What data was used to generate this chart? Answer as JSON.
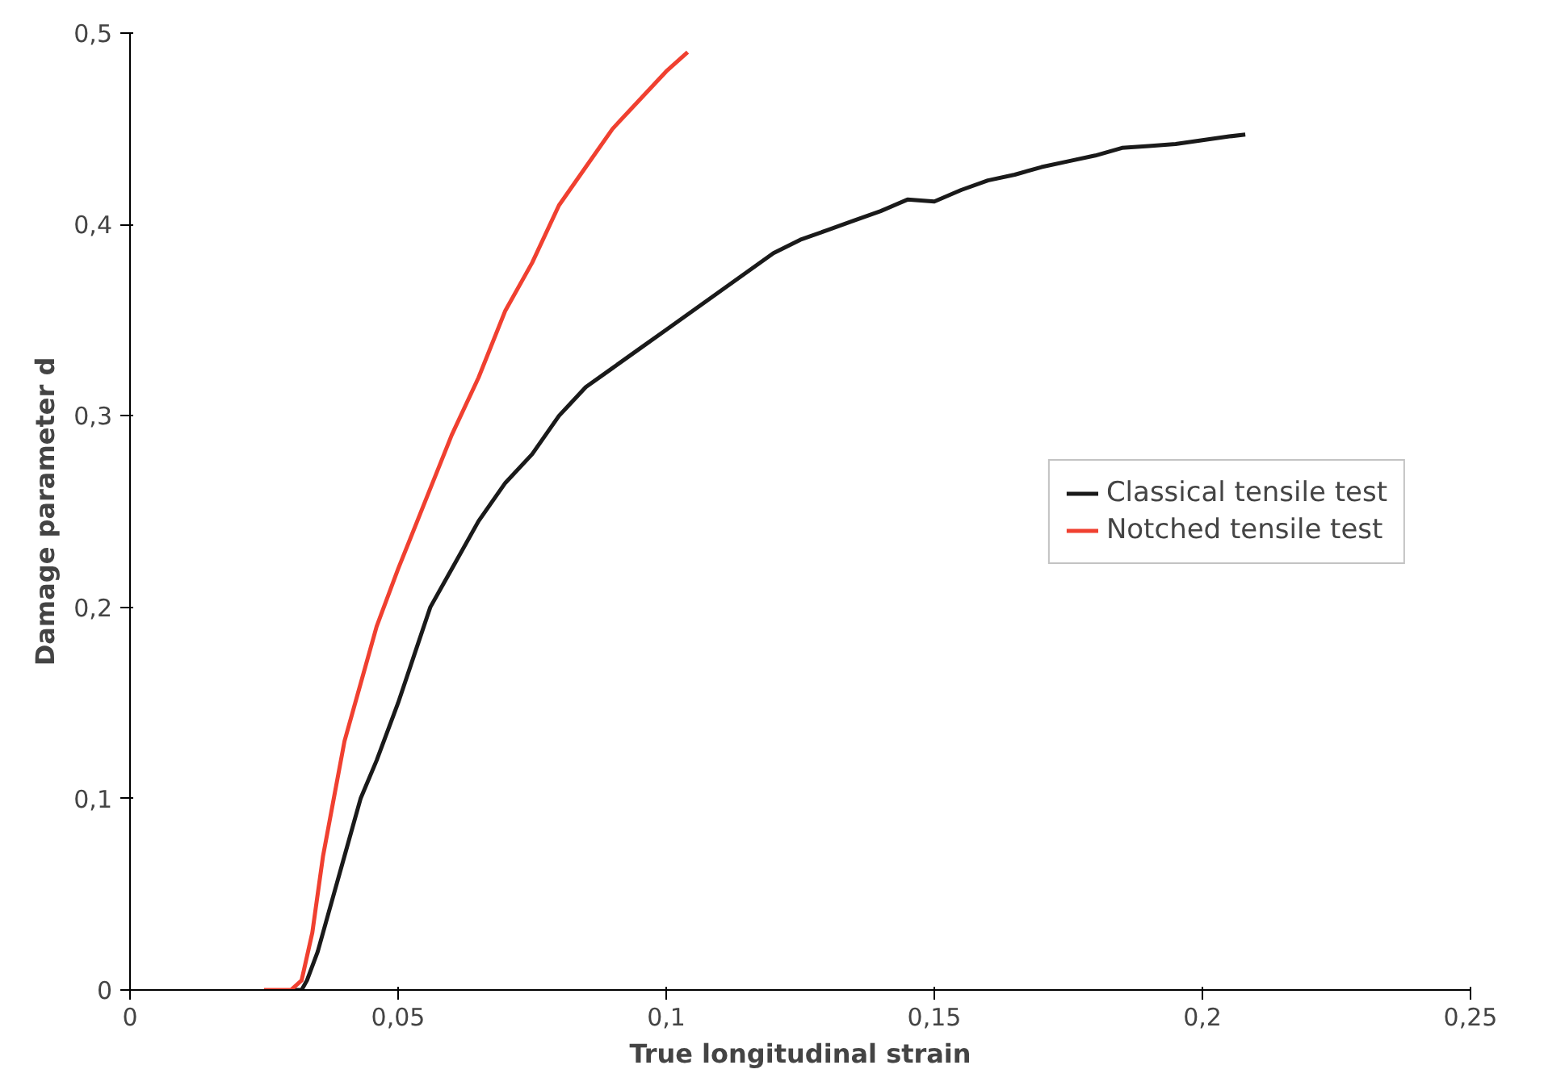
{
  "chart_data": {
    "type": "line",
    "xlabel": "True longitudinal strain",
    "ylabel": "Damage parameter d",
    "xlim": [
      0,
      0.25
    ],
    "ylim": [
      0,
      0.5
    ],
    "xticks": [
      0,
      {
        "value": 0.05,
        "label": "0,05"
      },
      {
        "value": 0.1,
        "label": "0,1"
      },
      {
        "value": 0.15,
        "label": "0,15"
      },
      {
        "value": 0.2,
        "label": "0,2"
      },
      {
        "value": 0.25,
        "label": "0,25"
      }
    ],
    "yticks": [
      0,
      {
        "value": 0.1,
        "label": "0,1"
      },
      {
        "value": 0.2,
        "label": "0,2"
      },
      {
        "value": 0.3,
        "label": "0,3"
      },
      {
        "value": 0.4,
        "label": "0,4"
      },
      {
        "value": 0.5,
        "label": "0,5"
      }
    ],
    "legend": "right",
    "grid": false,
    "series": [
      {
        "name": "Classical tensile test",
        "color": "#1a1a1a",
        "x": [
          0.03,
          0.032,
          0.033,
          0.035,
          0.037,
          0.04,
          0.043,
          0.046,
          0.05,
          0.053,
          0.056,
          0.06,
          0.065,
          0.07,
          0.075,
          0.08,
          0.085,
          0.09,
          0.095,
          0.1,
          0.105,
          0.11,
          0.115,
          0.12,
          0.125,
          0.13,
          0.135,
          0.14,
          0.145,
          0.15,
          0.155,
          0.16,
          0.165,
          0.17,
          0.175,
          0.18,
          0.185,
          0.19,
          0.195,
          0.2,
          0.205,
          0.208
        ],
        "values": [
          0,
          0,
          0.005,
          0.02,
          0.04,
          0.07,
          0.1,
          0.12,
          0.15,
          0.175,
          0.2,
          0.22,
          0.245,
          0.265,
          0.28,
          0.3,
          0.315,
          0.325,
          0.335,
          0.345,
          0.355,
          0.365,
          0.375,
          0.385,
          0.392,
          0.397,
          0.402,
          0.407,
          0.413,
          0.412,
          0.418,
          0.423,
          0.426,
          0.43,
          0.433,
          0.436,
          0.44,
          0.441,
          0.442,
          0.444,
          0.446,
          0.447
        ]
      },
      {
        "name": "Notched tensile test",
        "color": "#f04030",
        "x": [
          0.025,
          0.03,
          0.032,
          0.034,
          0.036,
          0.038,
          0.04,
          0.043,
          0.046,
          0.05,
          0.055,
          0.06,
          0.065,
          0.07,
          0.075,
          0.08,
          0.085,
          0.09,
          0.095,
          0.1,
          0.104
        ],
        "values": [
          0,
          0,
          0.005,
          0.03,
          0.07,
          0.1,
          0.13,
          0.16,
          0.19,
          0.22,
          0.255,
          0.29,
          0.32,
          0.355,
          0.38,
          0.41,
          0.43,
          0.45,
          0.465,
          0.48,
          0.49
        ]
      }
    ]
  }
}
